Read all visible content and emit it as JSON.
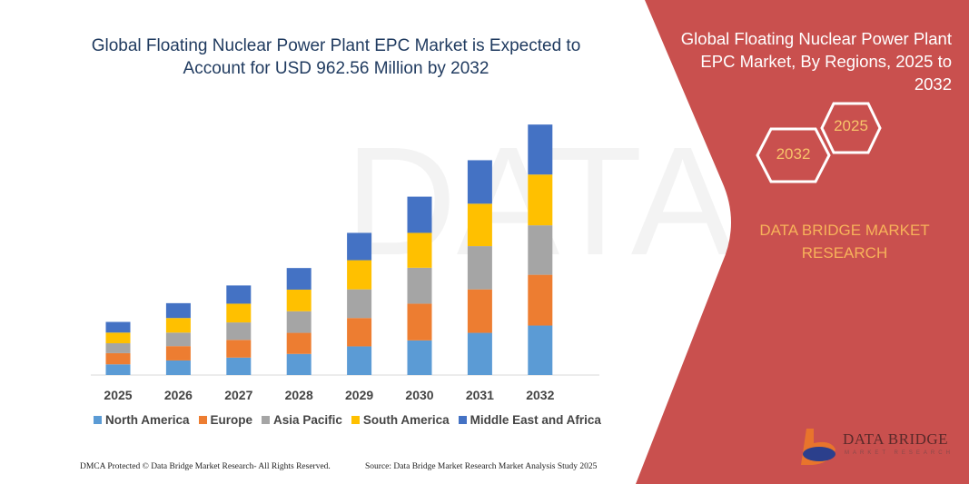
{
  "header": {
    "title": "Global Floating Nuclear Power Plant EPC Market is Expected to Account for USD 962.56 Million by 2032"
  },
  "side_panel": {
    "title": "Global Floating Nuclear Power Plant EPC Market, By Regions, 2025 to 2032",
    "hex_start": "2025",
    "hex_end": "2032",
    "brand": "DATA BRIDGE MARKET RESEARCH",
    "logo_text": "DATA BRIDGE",
    "logo_sub": "MARKET RESEARCH",
    "panel_color": "#C9504E"
  },
  "footer": {
    "left": "DMCA Protected © Data Bridge Market Research- All Rights Reserved.",
    "right": "Source: Data Bridge Market Research Market Analysis Study 2025"
  },
  "chart_data": {
    "type": "bar",
    "stacked": true,
    "title": "Global Floating Nuclear Power Plant EPC Market is Expected to Account for USD 962.56 Million by 2032",
    "xlabel": "",
    "ylabel": "",
    "ylim": [
      0,
      962.56
    ],
    "grid": false,
    "legend_position": "bottom",
    "categories": [
      "2025",
      "2026",
      "2027",
      "2028",
      "2029",
      "2030",
      "2031",
      "2032"
    ],
    "series": [
      {
        "name": "North America",
        "color": "#5B9BD5",
        "values": [
          41,
          56,
          67,
          81,
          110,
          133,
          162,
          190
        ]
      },
      {
        "name": "Europe",
        "color": "#ED7D31",
        "values": [
          43,
          55,
          68,
          81,
          109,
          141,
          167,
          195
        ]
      },
      {
        "name": "Asia Pacific",
        "color": "#A5A5A5",
        "values": [
          38,
          52,
          67,
          83,
          110,
          138,
          166,
          190
        ]
      },
      {
        "name": "South America",
        "color": "#FFC000",
        "values": [
          41,
          56,
          72,
          83,
          112,
          134,
          163,
          195
        ]
      },
      {
        "name": "Middle East and Africa",
        "color": "#4472C4",
        "values": [
          41,
          57,
          70,
          83,
          105,
          139,
          167,
          192
        ]
      }
    ]
  }
}
